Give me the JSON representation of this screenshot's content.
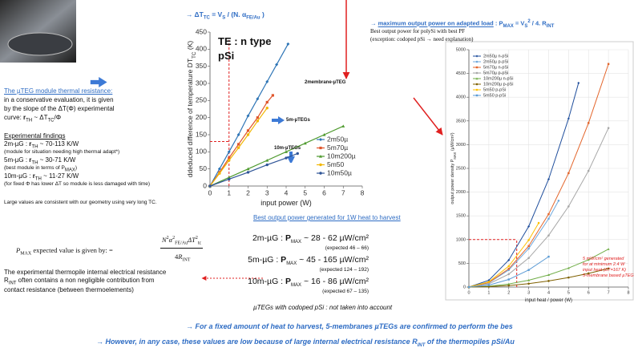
{
  "left_chart_header": [
    {
      "t": "→ ΔT"
    },
    {
      "sub": "TC"
    },
    {
      "t": " =  V"
    },
    {
      "sub": "S"
    },
    {
      "t": " / (N. α"
    },
    {
      "sub": "FE/Au"
    },
    {
      "t": " )"
    }
  ],
  "thermal": {
    "title": "The µTEG module thermal resistance:",
    "lines": [
      "in a conservative evaluation, it is given",
      "by the slope of the ΔT(Φ) experimental"
    ],
    "formula": [
      {
        "t": "curve:            "
      },
      {
        "b": "r"
      },
      {
        "sub": "TH"
      },
      {
        "t": " ~  ΔT"
      },
      {
        "sub": "TC"
      },
      {
        "t": "/Φ"
      }
    ]
  },
  "findings": {
    "title": "Experimental findings",
    "lines": [
      [
        {
          "t": "2m-µG  :  "
        },
        {
          "b": "r"
        },
        {
          "sub": "TH"
        },
        {
          "t": " ~  70-113 K/W"
        }
      ],
      [
        {
          "t": "(module for situation needing high thermal adapt*)"
        }
      ],
      [
        {
          "t": "5m-µG  :  "
        },
        {
          "b": "r"
        },
        {
          "sub": "TH"
        },
        {
          "t": " ~  30-71 K/W"
        }
      ],
      [
        {
          "t": "(best module in terms of P"
        },
        {
          "sub": "MAX"
        },
        {
          "t": ")"
        }
      ],
      [
        {
          "t": "10m-µG  :  "
        },
        {
          "b": "r"
        },
        {
          "sub": "TH"
        },
        {
          "t": " ~  11-27 K/W"
        }
      ],
      [
        {
          "t": "(for fixed Φ has lower ΔT so module is less damaged with time)"
        }
      ]
    ]
  },
  "large_values": "Large values are consistent with our geometry using very long TC.",
  "pmax_expected": {
    "text": [
      {
        "i": "P"
      },
      {
        "sub": "MAX"
      },
      {
        "t": " expected value is given by:   ="
      }
    ],
    "numerator": [
      {
        "i": "N"
      },
      {
        "sup": "2"
      },
      {
        "i": "α"
      },
      {
        "sup": "2"
      },
      {
        "sub": "FE/Au"
      },
      {
        "i": "ΔT"
      },
      {
        "sup": "2"
      },
      {
        "sub": "tc"
      }
    ],
    "denominator": [
      {
        "t": "4"
      },
      {
        "i": "R"
      },
      {
        "sub": "INT"
      }
    ]
  },
  "internal_resistance": [
    [
      {
        "t": "The experimental thermopile internal electrical resistance"
      }
    ],
    [
      {
        "t": "R"
      },
      {
        "sub": "INT"
      },
      {
        "t": " often contains a non negligible contribution from"
      }
    ],
    [
      {
        "t": "contact resistance (between thermoelements)"
      }
    ]
  ],
  "pmax_header": {
    "title": [
      {
        "t": "→ "
      },
      {
        "u": "maximum output power on adapted load"
      },
      {
        "t": " : P"
      },
      {
        "sub": "MAX"
      },
      {
        "t": " = V"
      },
      {
        "sub": "S"
      },
      {
        "sup": "2"
      },
      {
        "t": " / 4. R"
      },
      {
        "sub": "INT"
      }
    ],
    "notes": [
      "Best output power for polySi with best PF",
      "(exception: codoped pSi → need explanation)"
    ]
  },
  "best_output": {
    "title": "Best output power generated for 1W heat to harvest",
    "results": [
      {
        "line": [
          {
            "t": "2m-µG : "
          },
          {
            "b": "P"
          },
          {
            "sub": "MAX"
          },
          {
            "t": " ~  28 - 62 µW/cm²"
          }
        ],
        "expected": "(expected 46 – 66)"
      },
      {
        "line": [
          {
            "t": "5m-µG : "
          },
          {
            "b": "P"
          },
          {
            "sub": "MAX"
          },
          {
            "t": " ~  45 - 165 µW/cm²"
          }
        ],
        "expected": "(expected 124 – 192)"
      },
      {
        "line": [
          {
            "t": "10m-µG : "
          },
          {
            "b": "P"
          },
          {
            "sub": "MAX"
          },
          {
            "t": " ~  16 - 86 µW/cm²"
          }
        ],
        "expected": "(expected 67 – 135)"
      }
    ],
    "note": "µTEGs with codoped pSi :  not taken into account"
  },
  "conclusions": [
    [
      {
        "t": "→ For a fixed amount of heat to harvest, 5-membranes µTEGs are confirmed to perform the bes"
      }
    ],
    [
      {
        "t": "→ However, in any case, these values are low because of large internal electrical resistance R"
      },
      {
        "sub": "INT"
      },
      {
        "t": " of the thermopiles pSi/Au"
      }
    ]
  ],
  "charts": [
    {
      "type": "line",
      "title": [
        "TE : n type",
        "pSi"
      ],
      "ylabel": [
        {
          "t": "ddeduced difference of temperature DT"
        },
        {
          "sub": "TC"
        },
        {
          "t": " (K)"
        }
      ],
      "xlabel": "input power (W)",
      "xlim": [
        0,
        8
      ],
      "xticks": [
        0,
        1,
        2,
        3,
        4,
        5,
        6,
        7,
        8
      ],
      "ylim": [
        0,
        450
      ],
      "yticks": [
        0,
        50,
        100,
        150,
        200,
        250,
        300,
        350,
        400,
        450
      ],
      "grid": false,
      "annotations": [
        "2membrane-µTEG",
        "5m-µTEGs",
        "10m-µTEGs"
      ],
      "guide": {
        "x": 1,
        "y": 130
      },
      "series": [
        {
          "name": "2m50µ",
          "color": "#2e75b6",
          "marker": "diamond",
          "x": [
            0,
            0.5,
            1,
            1.5,
            2,
            2.5,
            3,
            3.5,
            4.1
          ],
          "values": [
            0,
            50,
            100,
            150,
            205,
            255,
            305,
            355,
            415
          ]
        },
        {
          "name": "5m70µ",
          "color": "#e0552b",
          "marker": "square",
          "x": [
            0,
            0.5,
            1,
            1.5,
            2,
            2.5,
            3,
            3.3
          ],
          "values": [
            0,
            40,
            82,
            122,
            162,
            200,
            245,
            265
          ]
        },
        {
          "name": "10m200µ",
          "color": "#4e9a2e",
          "marker": "triangle",
          "x": [
            0,
            1,
            2,
            3,
            4,
            5,
            6,
            7
          ],
          "values": [
            0,
            25,
            50,
            75,
            100,
            125,
            150,
            175
          ]
        },
        {
          "name": "5m50",
          "color": "#f2b705",
          "marker": "circle",
          "x": [
            0,
            0.5,
            1,
            1.5,
            2,
            2.5,
            3
          ],
          "values": [
            0,
            37,
            75,
            112,
            150,
            190,
            228
          ]
        },
        {
          "name": "10m50µ",
          "color": "#2f5597",
          "marker": "circle",
          "x": [
            0,
            1,
            2,
            3,
            4,
            4.6
          ],
          "values": [
            0,
            20,
            40,
            62,
            82,
            95
          ]
        }
      ]
    },
    {
      "type": "line",
      "ylabel": [
        {
          "t": "output power density P"
        },
        {
          "sub": "MAX"
        },
        {
          "t": " (µW/cm²)"
        }
      ],
      "xlabel": "input heat / power (W)",
      "xlim": [
        0,
        8
      ],
      "xticks": [
        0,
        1,
        2,
        3,
        4,
        5,
        6,
        7,
        8
      ],
      "ylim": [
        0,
        5000
      ],
      "yticks": [
        0,
        500,
        1000,
        1500,
        2000,
        2500,
        3000,
        3500,
        4000,
        4500,
        5000
      ],
      "grid": true,
      "annotations": [
        "5 mW/cm² generated",
        "for at minimum 2.4 W",
        "input heat  (ΔT=167 K)",
        "5-membrane based µTEG"
      ],
      "guide": {
        "x": 2.4,
        "y": 1000
      },
      "series": [
        {
          "name": "2m50µ  n-pSi",
          "color": "#1f4e9c",
          "marker": "diamond",
          "x": [
            0,
            1,
            2,
            3,
            4,
            5,
            5.5
          ],
          "values": [
            0,
            142,
            568,
            1278,
            2272,
            3550,
            4300
          ]
        },
        {
          "name": "2m50µ  p-pSi",
          "color": "#6fa8dc",
          "marker": "circle",
          "x": [
            0,
            1,
            2,
            3,
            4,
            4.5
          ],
          "values": [
            0,
            90,
            360,
            810,
            1440,
            1820
          ]
        },
        {
          "name": "5m70µ  n-pSi",
          "color": "#e3652b",
          "marker": "square",
          "x": [
            0,
            1,
            2,
            3,
            4,
            5,
            6,
            7
          ],
          "values": [
            0,
            96,
            384,
            864,
            1536,
            2400,
            3456,
            4700
          ]
        },
        {
          "name": "5m70µ  p-pSi",
          "color": "#a6a6a6",
          "marker": "circle",
          "x": [
            0,
            1,
            2,
            3,
            4,
            5,
            6,
            7
          ],
          "values": [
            0,
            68,
            272,
            612,
            1088,
            1700,
            2448,
            3350
          ]
        },
        {
          "name": "10m200µ  n-pSi",
          "color": "#70ad47",
          "marker": "triangle",
          "x": [
            0,
            1,
            2,
            3,
            4,
            5,
            6,
            7
          ],
          "values": [
            0,
            16,
            64,
            144,
            256,
            400,
            576,
            800
          ]
        },
        {
          "name": "10m200µ  p-pSi",
          "color": "#7f6000",
          "marker": "circle",
          "x": [
            0,
            1,
            2,
            3,
            4,
            5,
            6,
            7
          ],
          "values": [
            0,
            8,
            32,
            72,
            128,
            200,
            288,
            390
          ]
        },
        {
          "name": "5m50  p-pSi",
          "color": "#ffc000",
          "marker": "circle",
          "x": [
            0,
            1,
            2,
            3,
            3.5
          ],
          "values": [
            0,
            110,
            440,
            990,
            1350
          ]
        },
        {
          "name": "5m50  p-pSi",
          "color": "#5b9bd5",
          "marker": "square",
          "x": [
            0,
            1,
            2,
            3,
            4
          ],
          "values": [
            0,
            40,
            160,
            360,
            640
          ]
        }
      ]
    }
  ]
}
